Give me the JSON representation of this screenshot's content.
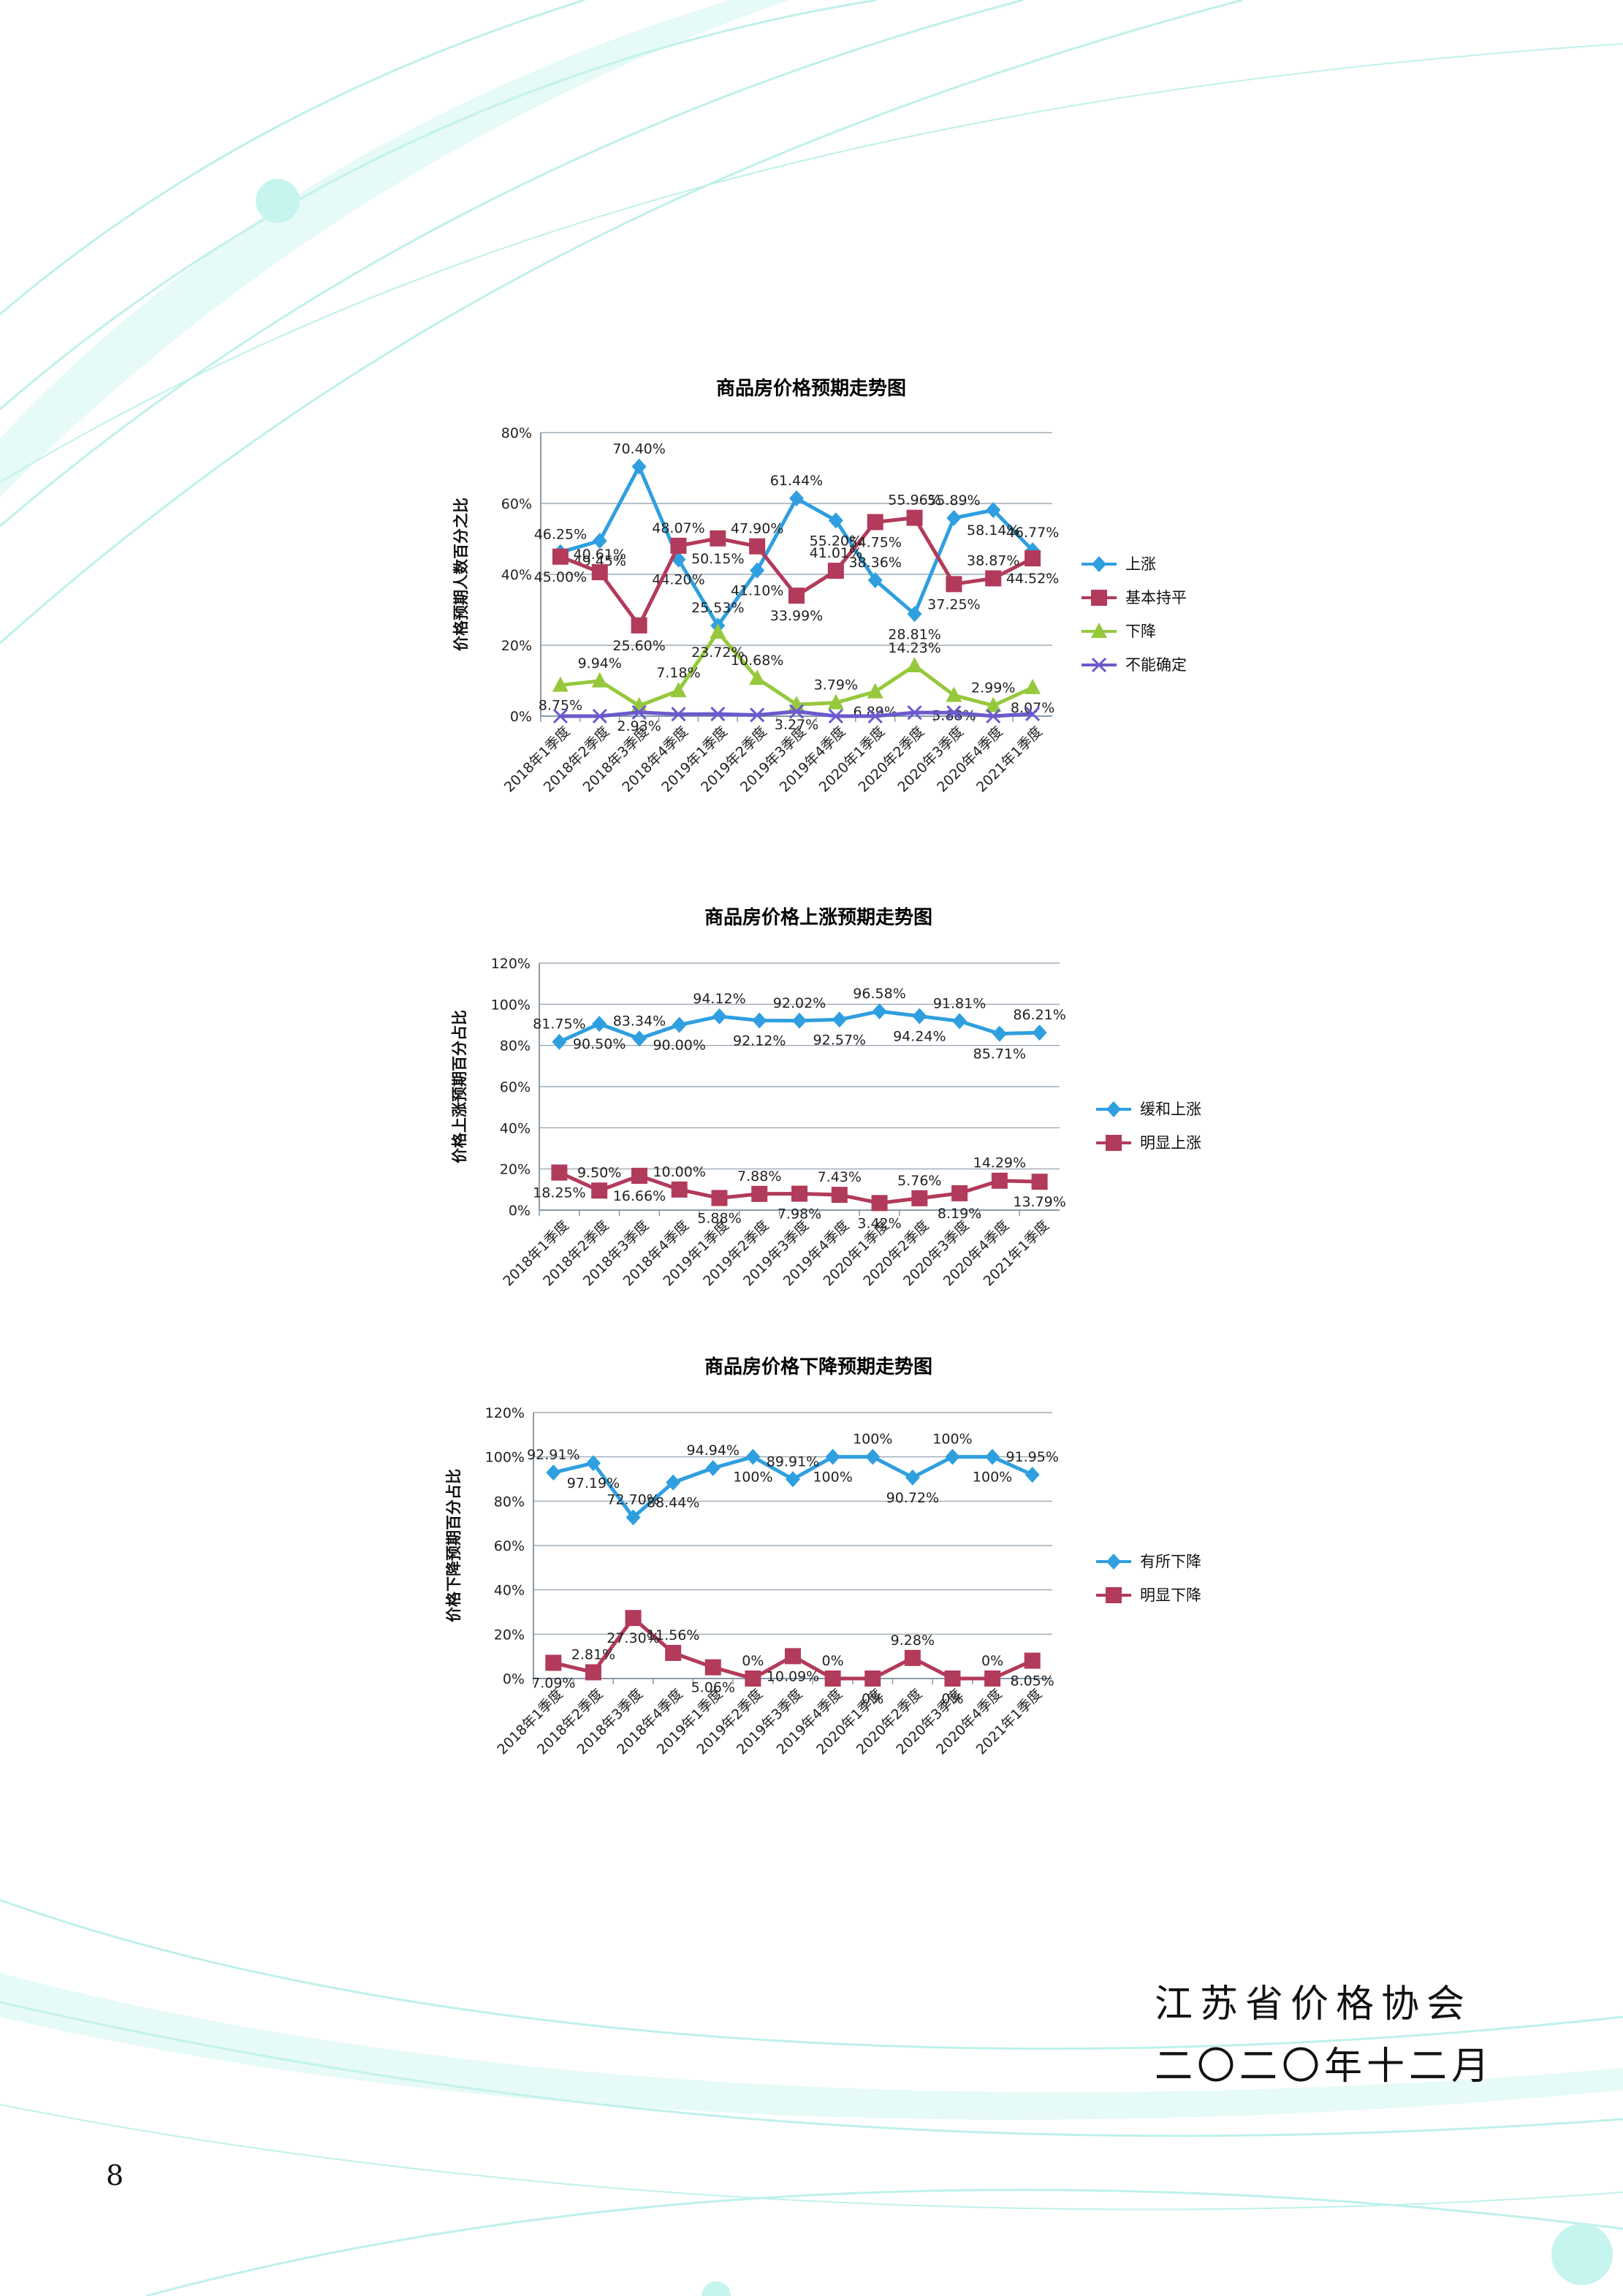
{
  "chart_data": [
    {
      "type": "line",
      "title": "商品房价格预期走势图",
      "ylabel": "价格预期人数百分之比",
      "ylim": [
        0,
        80
      ],
      "yticks": [
        "0%",
        "20%",
        "40%",
        "60%",
        "80%"
      ],
      "categories": [
        "2018年1季度",
        "2018年2季度",
        "2018年3季度",
        "2018年4季度",
        "2019年1季度",
        "2019年2季度",
        "2019年3季度",
        "2019年4季度",
        "2020年1季度",
        "2020年2季度",
        "2020年3季度",
        "2020年4季度",
        "2021年1季度"
      ],
      "grid": true,
      "legend": "right",
      "series": [
        {
          "name": "上涨",
          "color": "#2f9fe0",
          "marker": "diamond",
          "values": [
            46.25,
            49.45,
            70.4,
            44.2,
            25.53,
            41.1,
            61.44,
            55.2,
            38.36,
            28.81,
            55.89,
            58.14,
            46.77
          ],
          "labels": [
            "46.25%",
            "49.45%",
            "70.40%",
            "44.20%",
            "25.53%",
            "41.10%",
            "61.44%",
            "55.20%",
            "38.36%",
            "28.81%",
            "55.89%",
            "58.14%",
            "46.77%"
          ]
        },
        {
          "name": "基本持平",
          "color": "#b23a5a",
          "marker": "square",
          "values": [
            45.0,
            40.61,
            25.6,
            48.07,
            50.15,
            47.9,
            33.99,
            41.01,
            54.75,
            55.96,
            37.25,
            38.87,
            44.52
          ],
          "labels": [
            "45.00%",
            "40.61%",
            "25.60%",
            "48.07%",
            "50.15%",
            "47.90%",
            "33.99%",
            "41.01%",
            "54.75%",
            "55.96%",
            "37.25%",
            "38.87%",
            "44.52%"
          ]
        },
        {
          "name": "下降",
          "color": "#96c83c",
          "marker": "triangle",
          "values": [
            8.75,
            9.94,
            2.93,
            7.18,
            23.72,
            10.68,
            3.27,
            3.79,
            6.89,
            14.23,
            5.88,
            2.99,
            8.07
          ],
          "labels": [
            "8.75%",
            "9.94%",
            "2.93%",
            "7.18%",
            "23.72%",
            "10.68%",
            "3.27%",
            "3.79%",
            "6.89%",
            "14.23%",
            "5.88%",
            "2.99%",
            "8.07%"
          ]
        },
        {
          "name": "不能确定",
          "color": "#6a5acd",
          "marker": "x",
          "values": [
            0,
            0,
            1.07,
            0.55,
            0.6,
            0.32,
            1.3,
            0,
            0,
            1.0,
            0.98,
            0,
            0.64
          ],
          "labels": []
        }
      ]
    },
    {
      "type": "line",
      "title": "商品房价格上涨预期走势图",
      "ylabel": "价格上涨预期百分占比",
      "ylim": [
        0,
        120
      ],
      "yticks": [
        "0%",
        "20%",
        "40%",
        "60%",
        "80%",
        "100%",
        "120%"
      ],
      "categories": [
        "2018年1季度",
        "2018年2季度",
        "2018年3季度",
        "2018年4季度",
        "2019年1季度",
        "2019年2季度",
        "2019年3季度",
        "2019年4季度",
        "2020年1季度",
        "2020年2季度",
        "2020年3季度",
        "2020年4季度",
        "2021年1季度"
      ],
      "grid": true,
      "legend": "right",
      "series": [
        {
          "name": "缓和上涨",
          "color": "#2f9fe0",
          "marker": "diamond",
          "values": [
            81.75,
            90.5,
            83.34,
            90.0,
            94.12,
            92.12,
            92.02,
            92.57,
            96.58,
            94.24,
            91.81,
            85.71,
            86.21
          ],
          "labels": [
            "81.75%",
            "90.50%",
            "83.34%",
            "90.00%",
            "94.12%",
            "92.12%",
            "92.02%",
            "92.57%",
            "96.58%",
            "94.24%",
            "91.81%",
            "85.71%",
            "86.21%"
          ]
        },
        {
          "name": "明显上涨",
          "color": "#b23a5a",
          "marker": "square",
          "values": [
            18.25,
            9.5,
            16.66,
            10.0,
            5.88,
            7.88,
            7.98,
            7.43,
            3.42,
            5.76,
            8.19,
            14.29,
            13.79
          ],
          "labels": [
            "18.25%",
            "9.50%",
            "16.66%",
            "10.00%",
            "5.88%",
            "7.88%",
            "7.98%",
            "7.43%",
            "3.42%",
            "5.76%",
            "8.19%",
            "14.29%",
            "13.79%"
          ]
        }
      ]
    },
    {
      "type": "line",
      "title": "商品房价格下降预期走势图",
      "ylabel": "价格下降预期百分占比",
      "ylim": [
        0,
        120
      ],
      "yticks": [
        "0%",
        "20%",
        "40%",
        "60%",
        "80%",
        "100%",
        "120%"
      ],
      "categories": [
        "2018年1季度",
        "2018年2季度",
        "2018年3季度",
        "2018年4季度",
        "2019年1季度",
        "2019年2季度",
        "2019年3季度",
        "2019年4季度",
        "2020年1季度",
        "2020年2季度",
        "2020年3季度",
        "2020年4季度",
        "2021年1季度"
      ],
      "grid": true,
      "legend": "right",
      "series": [
        {
          "name": "有所下降",
          "color": "#2f9fe0",
          "marker": "diamond",
          "values": [
            92.91,
            97.19,
            72.7,
            88.44,
            94.94,
            100,
            89.91,
            100,
            100,
            90.72,
            100,
            100,
            91.95
          ],
          "labels": [
            "92.91%",
            "97.19%",
            "72.70%",
            "88.44%",
            "94.94%",
            "100%",
            "89.91%",
            "100%",
            "100%",
            "90.72%",
            "100%",
            "100%",
            "91.95%"
          ]
        },
        {
          "name": "明显下降",
          "color": "#b23a5a",
          "marker": "square",
          "values": [
            7.09,
            2.81,
            27.3,
            11.56,
            5.06,
            0,
            10.09,
            0,
            0,
            9.28,
            0,
            0,
            8.05
          ],
          "labels": [
            "7.09%",
            "2.81%",
            "27.30%",
            "11.56%",
            "5.06%",
            "0%",
            "10.09%",
            "0%",
            "0%",
            "9.28%",
            "0%",
            "0%",
            "8.05%"
          ]
        }
      ]
    }
  ],
  "footer": {
    "organization": "江苏省价格协会",
    "date": "二〇二〇年十二月",
    "page_number": "8"
  }
}
